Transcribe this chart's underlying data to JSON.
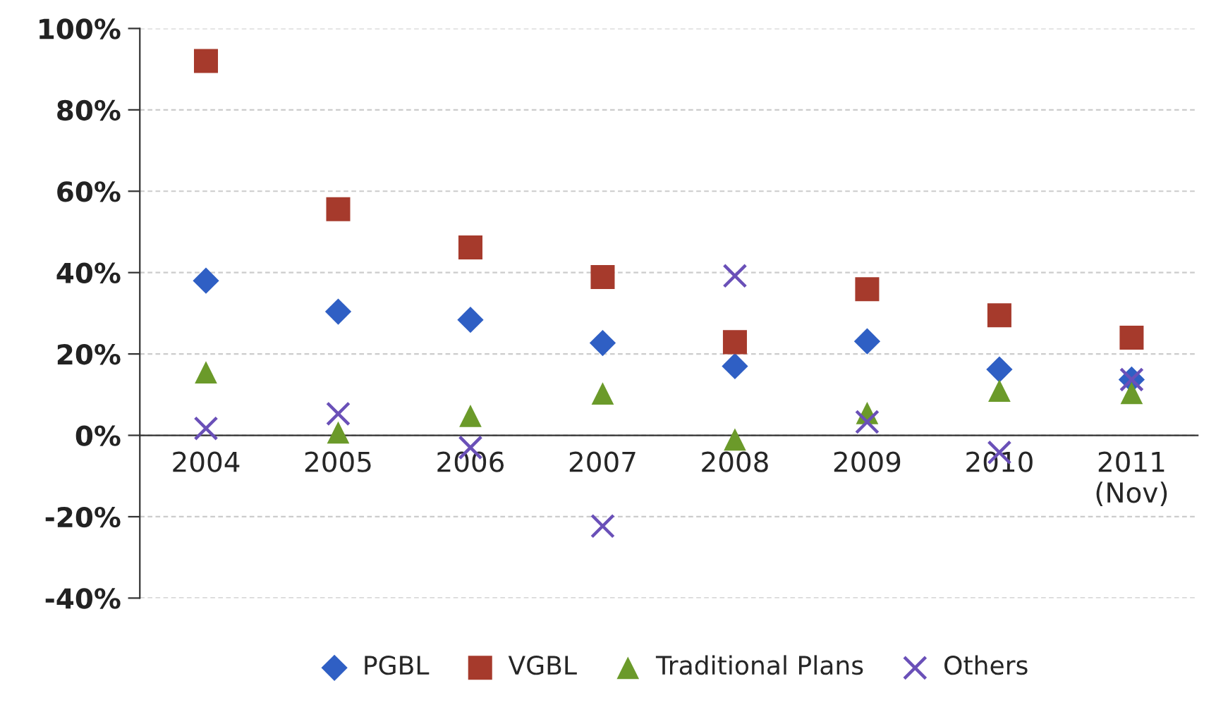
{
  "chart_data": {
    "type": "scatter",
    "categories": [
      "2004",
      "2005",
      "2006",
      "2007",
      "2008",
      "2009",
      "2010",
      "2011\n(Nov)"
    ],
    "series": [
      {
        "name": "PGBL",
        "color": "#2f5fc4",
        "marker": "diamond",
        "values": [
          38,
          30.4,
          28.4,
          22.7,
          17,
          23.1,
          16.2,
          13.7
        ]
      },
      {
        "name": "VGBL",
        "color": "#a63a2c",
        "marker": "square",
        "values": [
          92,
          55.6,
          46.2,
          38.9,
          22.9,
          35.9,
          29.5,
          24
        ]
      },
      {
        "name": "Traditional Plans",
        "color": "#6b9a2a",
        "marker": "triangle",
        "values": [
          15.5,
          0.7,
          4.8,
          10.3,
          -1,
          5.5,
          11,
          10.4
        ]
      },
      {
        "name": "Others",
        "color": "#6a50b8",
        "marker": "cross",
        "values": [
          1.7,
          5.3,
          -3,
          -22.3,
          39.2,
          3.3,
          -4.2,
          13.7
        ]
      }
    ],
    "ylim": [
      -40,
      100
    ],
    "yticks": [
      {
        "value": -40,
        "label": "-40%"
      },
      {
        "value": -20,
        "label": "-20%"
      },
      {
        "value": 0,
        "label": "0%"
      },
      {
        "value": 20,
        "label": "20%"
      },
      {
        "value": 40,
        "label": "40%"
      },
      {
        "value": 60,
        "label": "60%"
      },
      {
        "value": 80,
        "label": "80%"
      },
      {
        "value": 100,
        "label": "100%"
      }
    ],
    "grid": "y",
    "legend": "bottom"
  }
}
